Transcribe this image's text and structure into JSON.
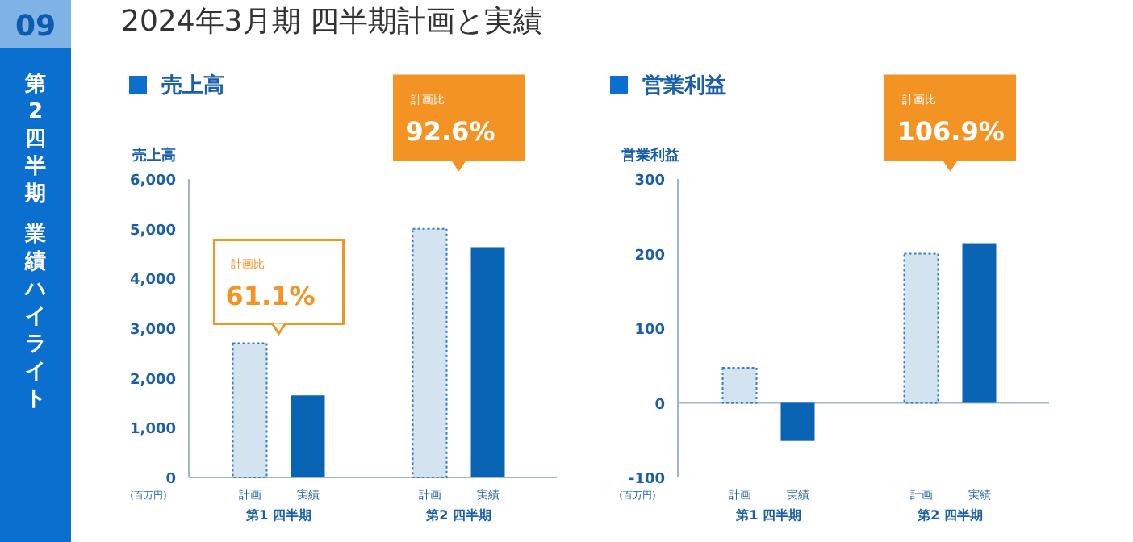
{
  "chart_data": [
    {
      "type": "bar",
      "title": "売上高",
      "ylabel": "売上高",
      "categories": [
        "計画",
        "実績",
        "計画",
        "実績"
      ],
      "values": [
        2700,
        1650,
        5000,
        4630
      ],
      "colors": [
        "#d3e3f0",
        "#0a64b4",
        "#d3e3f0",
        "#0a64b4"
      ],
      "ylim": [
        0,
        6000
      ],
      "yticks": [
        {
          "value": 0,
          "label": "0"
        },
        {
          "value": 1000,
          "label": "1,000"
        },
        {
          "value": 2000,
          "label": "2,000"
        },
        {
          "value": 3000,
          "label": "3,000"
        },
        {
          "value": 4000,
          "label": "4,000"
        },
        {
          "value": 5000,
          "label": "5,000"
        },
        {
          "value": 6000,
          "label": "6,000"
        }
      ],
      "grid": false,
      "annotations": [
        "2024年3月期 四半期計画と実績",
        "09",
        "第2四半期",
        "業績ハイライト",
        "第1 四半期",
        "第2 四半期",
        "(百万円)",
        "計画比 61.1%",
        "計画比 92.6%"
      ]
    },
    {
      "type": "bar",
      "title": "営業利益",
      "ylabel": "営業利益",
      "categories": [
        "計画",
        "実績",
        "計画",
        "実績"
      ],
      "values": [
        47,
        -51,
        200,
        214
      ],
      "colors": [
        "#d3e3f0",
        "#0a64b4",
        "#d3e3f0",
        "#0a64b4"
      ],
      "ylim": [
        -100,
        300
      ],
      "yticks": [
        -100,
        0,
        100,
        200,
        300
      ],
      "ref_lines": [
        {
          "axis": "y",
          "value": 0,
          "color": "#9fb6cc"
        }
      ],
      "grid": false,
      "annotations": [
        "第1 四半期",
        "第2 四半期",
        "(百万円)",
        "計画比 106.9%"
      ]
    }
  ]
}
